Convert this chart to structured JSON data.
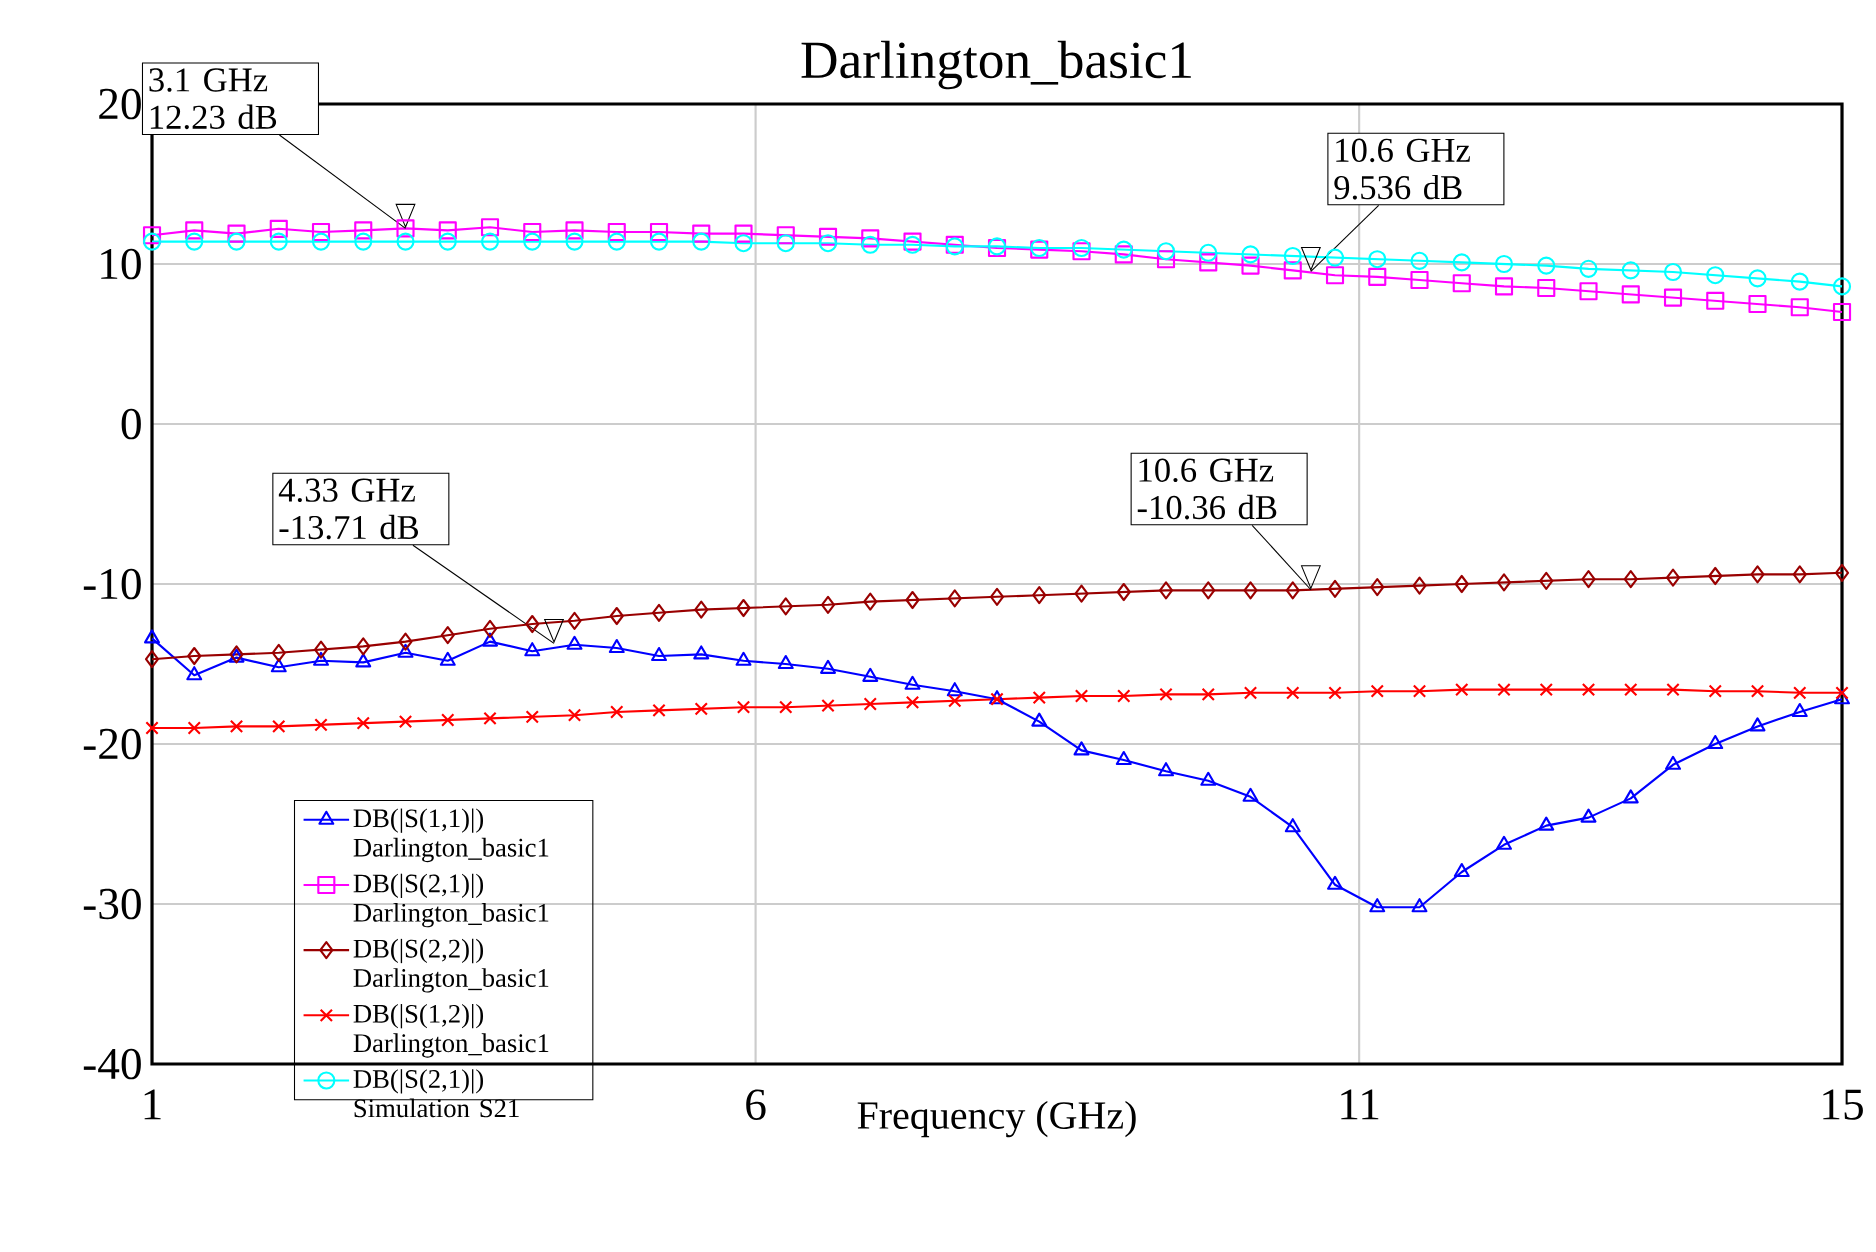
{
  "chart_data": {
    "type": "line",
    "title": "Darlington_basic1",
    "xlabel": "Frequency (GHz)",
    "x": [
      1,
      1.35,
      1.7,
      2.05,
      2.4,
      2.75,
      3.1,
      3.45,
      3.8,
      4.15,
      4.5,
      4.85,
      5.2,
      5.55,
      5.9,
      6.25,
      6.6,
      6.95,
      7.3,
      7.65,
      8.0,
      8.35,
      8.7,
      9.05,
      9.4,
      9.75,
      10.1,
      10.45,
      10.8,
      11.15,
      11.5,
      11.85,
      12.2,
      12.55,
      12.9,
      13.25,
      13.6,
      13.95,
      14.3,
      14.65,
      15
    ],
    "series": [
      {
        "name": "DB(|S(1,1)|) Darlington_basic1",
        "color": "#0000ff",
        "marker": "triangle",
        "values": [
          -13.4,
          -15.7,
          -14.6,
          -15.2,
          -14.8,
          -14.9,
          -14.3,
          -14.8,
          -13.6,
          -14.2,
          -13.8,
          -14.0,
          -14.5,
          -14.4,
          -14.8,
          -15.0,
          -15.3,
          -15.8,
          -16.3,
          -16.7,
          -17.2,
          -18.6,
          -20.4,
          -21.0,
          -21.7,
          -22.3,
          -23.3,
          -25.2,
          -28.8,
          -30.2,
          -30.2,
          -28.0,
          -26.3,
          -25.1,
          -24.6,
          -23.4,
          -21.3,
          -20.0,
          -18.9,
          -18.0,
          -17.2
        ]
      },
      {
        "name": "DB(|S(2,1)|) Darlington_basic1",
        "color": "#ff00ff",
        "marker": "square",
        "values": [
          11.8,
          12.1,
          11.9,
          12.2,
          12.0,
          12.1,
          12.23,
          12.1,
          12.3,
          12.0,
          12.1,
          12.0,
          12.0,
          11.9,
          11.9,
          11.8,
          11.7,
          11.6,
          11.4,
          11.2,
          11.0,
          10.9,
          10.8,
          10.6,
          10.3,
          10.1,
          9.9,
          9.6,
          9.3,
          9.2,
          9.0,
          8.8,
          8.6,
          8.5,
          8.3,
          8.1,
          7.9,
          7.7,
          7.5,
          7.3,
          7.0
        ]
      },
      {
        "name": "DB(|S(2,2)|) Darlington_basic1",
        "color": "#990000",
        "marker": "diamond",
        "values": [
          -14.7,
          -14.5,
          -14.4,
          -14.3,
          -14.1,
          -13.9,
          -13.6,
          -13.2,
          -12.8,
          -12.5,
          -12.3,
          -12.0,
          -11.8,
          -11.6,
          -11.5,
          -11.4,
          -11.3,
          -11.1,
          -11.0,
          -10.9,
          -10.8,
          -10.7,
          -10.6,
          -10.5,
          -10.4,
          -10.4,
          -10.4,
          -10.4,
          -10.3,
          -10.2,
          -10.1,
          -10.0,
          -9.9,
          -9.8,
          -9.7,
          -9.7,
          -9.6,
          -9.5,
          -9.4,
          -9.4,
          -9.3
        ]
      },
      {
        "name": "DB(|S(1,2)|) Darlington_basic1",
        "color": "#ff0000",
        "marker": "cross",
        "values": [
          -19.0,
          -19.0,
          -18.9,
          -18.9,
          -18.8,
          -18.7,
          -18.6,
          -18.5,
          -18.4,
          -18.3,
          -18.2,
          -18.0,
          -17.9,
          -17.8,
          -17.7,
          -17.7,
          -17.6,
          -17.5,
          -17.4,
          -17.3,
          -17.2,
          -17.1,
          -17.0,
          -17.0,
          -16.9,
          -16.9,
          -16.8,
          -16.8,
          -16.8,
          -16.7,
          -16.7,
          -16.6,
          -16.6,
          -16.6,
          -16.6,
          -16.6,
          -16.6,
          -16.7,
          -16.7,
          -16.8,
          -16.8
        ]
      },
      {
        "name": "DB(|S(2,1)|) Simulation S21",
        "color": "#00ffff",
        "marker": "circle",
        "values": [
          11.4,
          11.4,
          11.4,
          11.4,
          11.4,
          11.4,
          11.4,
          11.4,
          11.4,
          11.4,
          11.4,
          11.4,
          11.4,
          11.4,
          11.3,
          11.3,
          11.3,
          11.2,
          11.2,
          11.1,
          11.1,
          11.0,
          11.0,
          10.9,
          10.8,
          10.7,
          10.6,
          10.5,
          10.4,
          10.3,
          10.2,
          10.1,
          10.0,
          9.9,
          9.7,
          9.6,
          9.5,
          9.3,
          9.1,
          8.9,
          8.6
        ]
      }
    ],
    "annotations": [
      {
        "text": "3.1 GHz 12.23 dB",
        "x": 3.1,
        "y": 12.23
      },
      {
        "text": "4.33 GHz -13.71 dB",
        "x": 4.33,
        "y": -13.71
      },
      {
        "text": "10.6 GHz 9.536 dB",
        "x": 10.6,
        "y": 9.536
      },
      {
        "text": "10.6 GHz -10.36 dB",
        "x": 10.6,
        "y": -10.36
      }
    ],
    "xlim": [
      1,
      15
    ],
    "xticks": [
      1,
      6,
      11,
      15
    ],
    "ylim": [
      -40,
      20
    ],
    "yticks": [
      -40,
      -30,
      -20,
      -10,
      0,
      10,
      20
    ],
    "grid": true,
    "legend": "bottom left",
    "line_style": "solid"
  }
}
